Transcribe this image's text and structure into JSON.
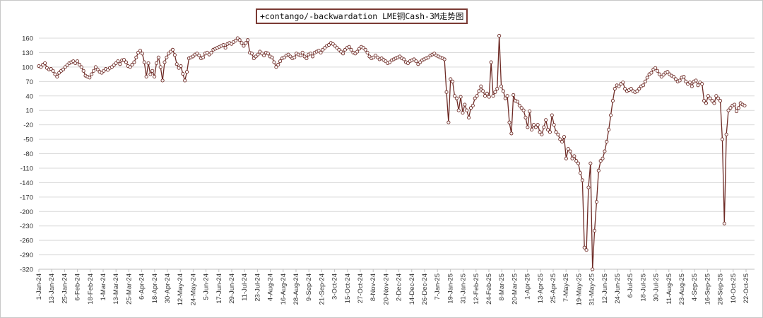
{
  "chart_data": {
    "type": "line",
    "title": "+contango/-backwardation LME铜Cash-3M走势图",
    "xlabel": "",
    "ylabel": "",
    "ylim": [
      -320,
      160
    ],
    "yticks": [
      160,
      130,
      100,
      70,
      40,
      10,
      -20,
      -50,
      -80,
      -110,
      -140,
      -170,
      -200,
      -230,
      -260,
      -290,
      -320
    ],
    "grid": "horizontal",
    "legend": "none",
    "colors": {
      "line": "#6e2b26",
      "marker_fill": "#ffffff",
      "grid": "#d9d9d9"
    },
    "x_tick_labels": [
      "1-Jan-24",
      "13-Jan-24",
      "25-Jan-24",
      "6-Feb-24",
      "18-Feb-24",
      "1-Mar-24",
      "13-Mar-24",
      "25-Mar-24",
      "6-Apr-24",
      "18-Apr-24",
      "30-Apr-24",
      "12-May-24",
      "24-May-24",
      "5-Jun-24",
      "17-Jun-24",
      "29-Jun-24",
      "11-Jul-24",
      "23-Jul-24",
      "4-Aug-24",
      "16-Aug-24",
      "28-Aug-24",
      "9-Sep-24",
      "21-Sep-24",
      "3-Oct-24",
      "15-Oct-24",
      "27-Oct-24",
      "8-Nov-24",
      "20-Nov-24",
      "2-Dec-24",
      "14-Dec-24",
      "26-Dec-24",
      "7-Jan-25",
      "19-Jan-25",
      "31-Jan-25",
      "12-Feb-25",
      "24-Feb-25",
      "8-Mar-25",
      "20-Mar-25",
      "1-Apr-25",
      "13-Apr-25",
      "25-Apr-25",
      "7-May-25",
      "19-May-25",
      "31-May-25",
      "12-Jun-25",
      "24-Jun-25",
      "6-Jul-25",
      "18-Jul-25",
      "30-Jul-25",
      "11-Aug-25",
      "23-Aug-25",
      "4-Sep-25",
      "16-Sep-25",
      "28-Sep-25",
      "10-Oct-25",
      "22-Oct-25"
    ],
    "series": [
      {
        "values": [
          102,
          100,
          105,
          108,
          98,
          95,
          96,
          92,
          85,
          80,
          88,
          92,
          95,
          100,
          104,
          108,
          110,
          112,
          108,
          112,
          105,
          100,
          92,
          82,
          80,
          78,
          85,
          92,
          100,
          95,
          90,
          88,
          92,
          96,
          94,
          98,
          100,
          104,
          108,
          112,
          106,
          114,
          115,
          110,
          102,
          100,
          105,
          110,
          120,
          130,
          134,
          128,
          110,
          80,
          108,
          85,
          92,
          80,
          108,
          120,
          100,
          72,
          110,
          120,
          128,
          132,
          136,
          125,
          106,
          98,
          102,
          86,
          72,
          90,
          118,
          120,
          122,
          126,
          128,
          124,
          118,
          120,
          128,
          130,
          126,
          130,
          136,
          138,
          140,
          142,
          144,
          146,
          140,
          148,
          150,
          148,
          152,
          155,
          160,
          156,
          150,
          144,
          150,
          156,
          130,
          128,
          118,
          122,
          126,
          132,
          128,
          124,
          130,
          128,
          122,
          120,
          110,
          100,
          105,
          112,
          118,
          120,
          124,
          126,
          122,
          118,
          120,
          128,
          126,
          124,
          130,
          122,
          118,
          126,
          128,
          122,
          130,
          132,
          134,
          130,
          136,
          140,
          144,
          146,
          150,
          148,
          144,
          140,
          136,
          132,
          128,
          136,
          140,
          142,
          136,
          130,
          128,
          132,
          138,
          142,
          140,
          136,
          130,
          122,
          118,
          120,
          124,
          120,
          116,
          118,
          115,
          112,
          108,
          110,
          114,
          116,
          118,
          120,
          122,
          118,
          116,
          110,
          108,
          112,
          114,
          116,
          112,
          106,
          110,
          114,
          116,
          118,
          120,
          124,
          126,
          128,
          124,
          122,
          120,
          118,
          116,
          48,
          -15,
          75,
          70,
          40,
          35,
          10,
          38,
          5,
          22,
          10,
          -5,
          15,
          20,
          35,
          40,
          50,
          60,
          50,
          40,
          45,
          38,
          110,
          40,
          48,
          55,
          165,
          60,
          50,
          35,
          40,
          -15,
          -38,
          42,
          30,
          28,
          20,
          15,
          10,
          -5,
          -25,
          8,
          -30,
          -20,
          -25,
          -20,
          -35,
          -40,
          -25,
          -10,
          -30,
          -35,
          0,
          -20,
          -35,
          -40,
          -50,
          -55,
          -45,
          -90,
          -70,
          -75,
          -90,
          -85,
          -95,
          -100,
          -120,
          -135,
          -275,
          -280,
          -150,
          -100,
          -320,
          -240,
          -180,
          -115,
          -95,
          -90,
          -75,
          -55,
          -30,
          0,
          30,
          55,
          62,
          60,
          65,
          68,
          55,
          50,
          52,
          55,
          50,
          48,
          50,
          55,
          60,
          62,
          70,
          78,
          85,
          88,
          95,
          98,
          92,
          85,
          80,
          84,
          88,
          90,
          85,
          82,
          80,
          75,
          70,
          72,
          78,
          80,
          70,
          65,
          68,
          60,
          70,
          72,
          62,
          68,
          65,
          30,
          25,
          40,
          35,
          30,
          25,
          40,
          35,
          30,
          -50,
          -225,
          -40,
          10,
          15,
          20,
          22,
          8,
          15,
          25,
          22,
          20
        ]
      }
    ]
  }
}
